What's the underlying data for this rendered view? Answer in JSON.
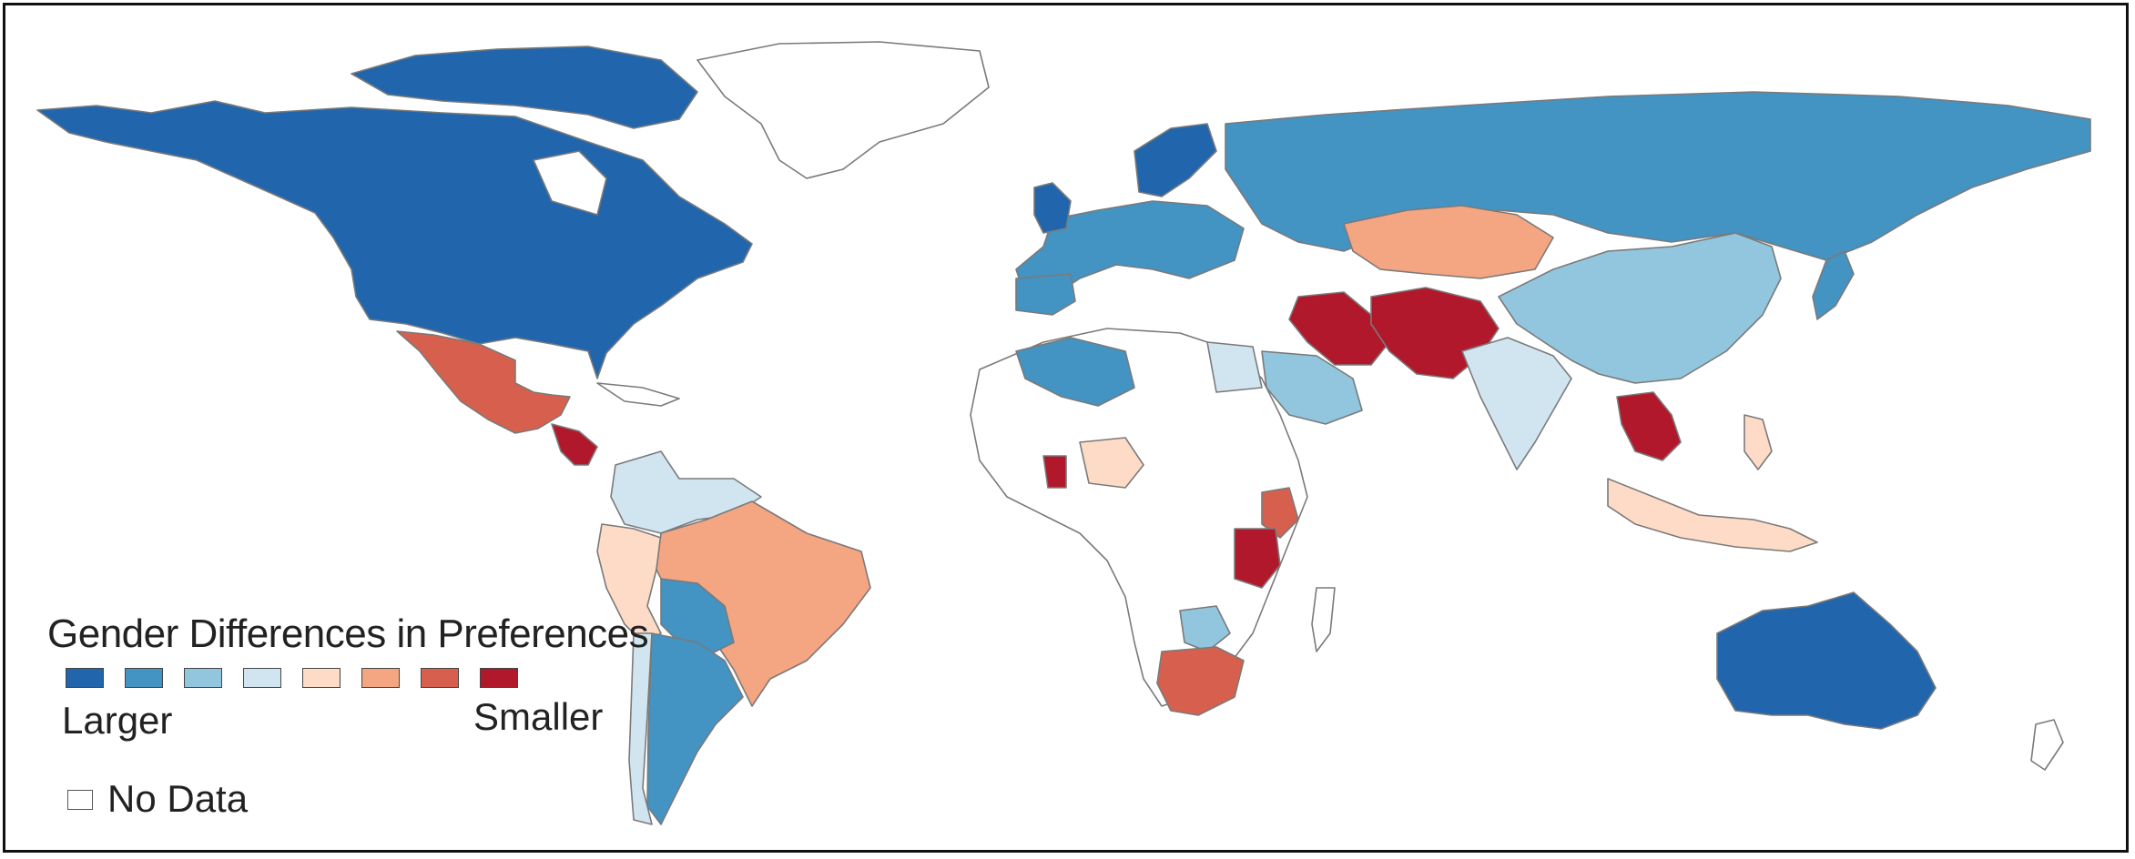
{
  "legend": {
    "title": "Gender Differences in Preferences",
    "low_label": "Larger",
    "high_label": "Smaller",
    "nodata_label": "No Data",
    "scale_colors": [
      "#2166ac",
      "#4393c3",
      "#92c5de",
      "#d1e5f0",
      "#fddbc7",
      "#f4a582",
      "#d6604d",
      "#b2182b"
    ]
  },
  "colors": {
    "nodata": "#ffffff",
    "border": "#7a7a7a",
    "frame": "#111111"
  },
  "regions": [
    {
      "name": "North America",
      "level": 0
    },
    {
      "name": "Greenland",
      "level": null
    },
    {
      "name": "Mexico",
      "level": 6
    },
    {
      "name": "Central America",
      "level": 7
    },
    {
      "name": "Colombia/Venezuela",
      "level": 3
    },
    {
      "name": "Peru/Ecuador",
      "level": 4
    },
    {
      "name": "Brazil",
      "level": 5
    },
    {
      "name": "Bolivia/Paraguay",
      "level": 1
    },
    {
      "name": "Chile",
      "level": 3
    },
    {
      "name": "Argentina",
      "level": 1
    },
    {
      "name": "Western Europe",
      "level": 1
    },
    {
      "name": "United Kingdom",
      "level": 0
    },
    {
      "name": "Scandinavia",
      "level": 0
    },
    {
      "name": "Russia",
      "level": 1
    },
    {
      "name": "Kazakhstan",
      "level": 5
    },
    {
      "name": "Iran",
      "level": 7
    },
    {
      "name": "Afghanistan/Pakistan",
      "level": 7
    },
    {
      "name": "Saudi Arabia",
      "level": 2
    },
    {
      "name": "India",
      "level": 3
    },
    {
      "name": "China",
      "level": 2
    },
    {
      "name": "Japan",
      "level": 1
    },
    {
      "name": "Southeast Asia",
      "level": 7
    },
    {
      "name": "Indonesia",
      "level": 4
    },
    {
      "name": "Algeria",
      "level": 1
    },
    {
      "name": "Egypt",
      "level": 3
    },
    {
      "name": "Nigeria",
      "level": 4
    },
    {
      "name": "Ghana",
      "level": 7
    },
    {
      "name": "Tanzania",
      "level": 7
    },
    {
      "name": "Kenya",
      "level": 6
    },
    {
      "name": "South Africa",
      "level": 6
    },
    {
      "name": "Zimbabwe/Botswana",
      "level": 2
    },
    {
      "name": "Australia",
      "level": 0
    }
  ]
}
